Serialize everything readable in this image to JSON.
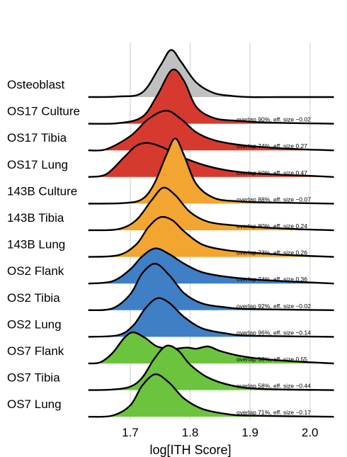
{
  "chart_data": {
    "type": "ridgeline",
    "title": "",
    "xlabel": "log[ITH Score]",
    "ylabel": "",
    "xlim": [
      1.615,
      2.05
    ],
    "xticks": [
      "1.7",
      "1.8",
      "1.9",
      "2.0"
    ],
    "grid": "vertical",
    "legend": "none",
    "series": [
      {
        "name": "Osteoblast",
        "color": "#c0c0c0",
        "annotation": "",
        "curve": [
          [
            1.63,
            0
          ],
          [
            1.68,
            0.01
          ],
          [
            1.72,
            0.08
          ],
          [
            1.75,
            0.55
          ],
          [
            1.768,
            0.83
          ],
          [
            1.785,
            0.62
          ],
          [
            1.81,
            0.26
          ],
          [
            1.84,
            0.07
          ],
          [
            1.87,
            0.02
          ],
          [
            1.9,
            0
          ],
          [
            1.95,
            0
          ],
          [
            2.04,
            0
          ]
        ]
      },
      {
        "name": "OS17 Culture",
        "color": "#d63a2f",
        "annotation": "overlap 90%, eff. size −0.02",
        "curve": [
          [
            1.63,
            0
          ],
          [
            1.68,
            0.01
          ],
          [
            1.72,
            0.12
          ],
          [
            1.745,
            0.5
          ],
          [
            1.77,
            0.95
          ],
          [
            1.79,
            0.75
          ],
          [
            1.81,
            0.3
          ],
          [
            1.84,
            0.1
          ],
          [
            1.88,
            0.05
          ],
          [
            1.93,
            0.02
          ],
          [
            2.04,
            0
          ]
        ]
      },
      {
        "name": "OS17 Tibia",
        "color": "#d63a2f",
        "annotation": "overlap 74%, eff. size 0.27",
        "curve": [
          [
            1.63,
            0
          ],
          [
            1.66,
            0.02
          ],
          [
            1.7,
            0.25
          ],
          [
            1.73,
            0.55
          ],
          [
            1.76,
            0.7
          ],
          [
            1.785,
            0.55
          ],
          [
            1.81,
            0.32
          ],
          [
            1.84,
            0.18
          ],
          [
            1.88,
            0.1
          ],
          [
            1.93,
            0.05
          ],
          [
            1.98,
            0.02
          ],
          [
            2.04,
            0
          ]
        ]
      },
      {
        "name": "OS17 Lung",
        "color": "#d63a2f",
        "annotation": "overlap 60%, eff. size 0.47",
        "curve": [
          [
            1.63,
            0
          ],
          [
            1.66,
            0.05
          ],
          [
            1.69,
            0.35
          ],
          [
            1.71,
            0.55
          ],
          [
            1.73,
            0.6
          ],
          [
            1.755,
            0.52
          ],
          [
            1.78,
            0.38
          ],
          [
            1.82,
            0.22
          ],
          [
            1.86,
            0.12
          ],
          [
            1.9,
            0.07
          ],
          [
            1.95,
            0.04
          ],
          [
            2.0,
            0.02
          ],
          [
            2.04,
            0
          ]
        ]
      },
      {
        "name": "143B Culture",
        "color": "#f2a531",
        "annotation": "overlap 88%, eff. size −0.07",
        "curve": [
          [
            1.63,
            0
          ],
          [
            1.69,
            0.01
          ],
          [
            1.72,
            0.08
          ],
          [
            1.74,
            0.35
          ],
          [
            1.76,
            0.85
          ],
          [
            1.775,
            1.15
          ],
          [
            1.79,
            0.85
          ],
          [
            1.81,
            0.35
          ],
          [
            1.84,
            0.1
          ],
          [
            1.88,
            0.04
          ],
          [
            1.93,
            0.02
          ],
          [
            2.04,
            0
          ]
        ]
      },
      {
        "name": "143B Tibia",
        "color": "#f2a531",
        "annotation": "overlap 80%, eff. size 0.24",
        "curve": [
          [
            1.63,
            0
          ],
          [
            1.68,
            0.02
          ],
          [
            1.71,
            0.18
          ],
          [
            1.735,
            0.52
          ],
          [
            1.755,
            0.75
          ],
          [
            1.775,
            0.62
          ],
          [
            1.8,
            0.32
          ],
          [
            1.83,
            0.15
          ],
          [
            1.87,
            0.09
          ],
          [
            1.92,
            0.05
          ],
          [
            1.98,
            0.02
          ],
          [
            2.04,
            0
          ]
        ]
      },
      {
        "name": "143B Lung",
        "color": "#f2a531",
        "annotation": "overlap 73%, eff. size 0.26",
        "curve": [
          [
            1.63,
            0
          ],
          [
            1.68,
            0.03
          ],
          [
            1.71,
            0.22
          ],
          [
            1.73,
            0.52
          ],
          [
            1.75,
            0.7
          ],
          [
            1.77,
            0.65
          ],
          [
            1.79,
            0.45
          ],
          [
            1.82,
            0.22
          ],
          [
            1.86,
            0.12
          ],
          [
            1.91,
            0.07
          ],
          [
            1.97,
            0.03
          ],
          [
            2.04,
            0
          ]
        ]
      },
      {
        "name": "OS2 Flank",
        "color": "#3f7fc6",
        "annotation": "overlap 74%, eff. size 0.36",
        "curve": [
          [
            1.63,
            0
          ],
          [
            1.67,
            0.04
          ],
          [
            1.7,
            0.25
          ],
          [
            1.72,
            0.48
          ],
          [
            1.742,
            0.62
          ],
          [
            1.765,
            0.52
          ],
          [
            1.79,
            0.35
          ],
          [
            1.82,
            0.2
          ],
          [
            1.86,
            0.12
          ],
          [
            1.91,
            0.07
          ],
          [
            1.96,
            0.04
          ],
          [
            2.04,
            0
          ]
        ]
      },
      {
        "name": "OS2 Tibia",
        "color": "#3f7fc6",
        "annotation": "overlap 92%, eff. size −0.02",
        "curve": [
          [
            1.63,
            0
          ],
          [
            1.67,
            0.03
          ],
          [
            1.7,
            0.28
          ],
          [
            1.72,
            0.65
          ],
          [
            1.742,
            0.82
          ],
          [
            1.765,
            0.62
          ],
          [
            1.79,
            0.3
          ],
          [
            1.82,
            0.12
          ],
          [
            1.86,
            0.05
          ],
          [
            1.9,
            0.02
          ],
          [
            2.04,
            0
          ]
        ]
      },
      {
        "name": "OS2 Lung",
        "color": "#3f7fc6",
        "annotation": "overlap 96%, eff. size −0.14",
        "curve": [
          [
            1.63,
            0
          ],
          [
            1.68,
            0.03
          ],
          [
            1.705,
            0.2
          ],
          [
            1.725,
            0.5
          ],
          [
            1.745,
            0.68
          ],
          [
            1.765,
            0.6
          ],
          [
            1.79,
            0.35
          ],
          [
            1.82,
            0.15
          ],
          [
            1.86,
            0.06
          ],
          [
            1.9,
            0.02
          ],
          [
            2.04,
            0
          ]
        ]
      },
      {
        "name": "OS7 Flank",
        "color": "#6cc43e",
        "annotation": "overlap 53%, eff. size 0.55",
        "curve": [
          [
            1.63,
            0
          ],
          [
            1.65,
            0.02
          ],
          [
            1.67,
            0.18
          ],
          [
            1.69,
            0.45
          ],
          [
            1.705,
            0.55
          ],
          [
            1.725,
            0.45
          ],
          [
            1.745,
            0.3
          ],
          [
            1.77,
            0.26
          ],
          [
            1.795,
            0.28
          ],
          [
            1.81,
            0.26
          ],
          [
            1.83,
            0.3
          ],
          [
            1.85,
            0.22
          ],
          [
            1.88,
            0.14
          ],
          [
            1.92,
            0.08
          ],
          [
            1.97,
            0.04
          ],
          [
            2.04,
            0
          ]
        ]
      },
      {
        "name": "OS7 Tibia",
        "color": "#6cc43e",
        "annotation": "overlap 58%, eff. size −0.44",
        "curve": [
          [
            1.63,
            0
          ],
          [
            1.67,
            0.01
          ],
          [
            1.7,
            0.06
          ],
          [
            1.72,
            0.22
          ],
          [
            1.74,
            0.55
          ],
          [
            1.76,
            0.78
          ],
          [
            1.78,
            0.7
          ],
          [
            1.8,
            0.45
          ],
          [
            1.83,
            0.22
          ],
          [
            1.87,
            0.08
          ],
          [
            1.92,
            0.02
          ],
          [
            2.04,
            0
          ]
        ]
      },
      {
        "name": "OS7 Lung",
        "color": "#6cc43e",
        "annotation": "overlap 71%, eff. size −0.17",
        "curve": [
          [
            1.63,
            0
          ],
          [
            1.67,
            0.02
          ],
          [
            1.7,
            0.2
          ],
          [
            1.72,
            0.55
          ],
          [
            1.742,
            0.75
          ],
          [
            1.765,
            0.6
          ],
          [
            1.79,
            0.32
          ],
          [
            1.82,
            0.14
          ],
          [
            1.86,
            0.05
          ],
          [
            1.9,
            0.02
          ],
          [
            2.04,
            0
          ]
        ]
      }
    ]
  }
}
